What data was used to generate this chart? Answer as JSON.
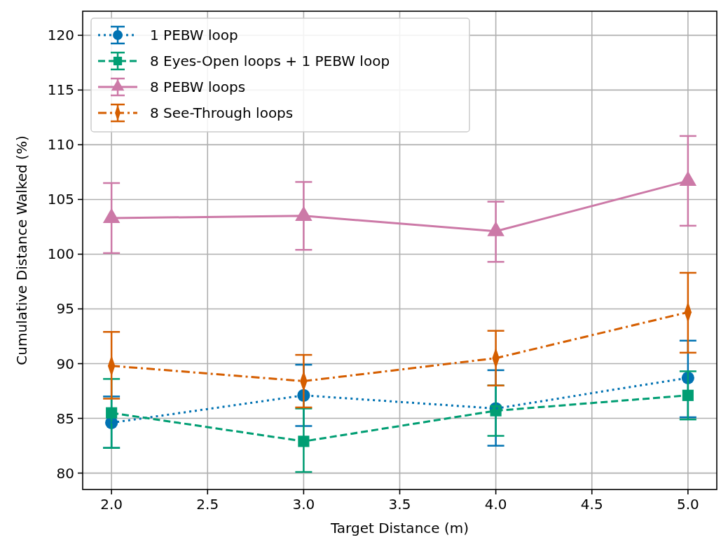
{
  "chart_data": {
    "type": "line",
    "xlabel": "Target Distance (m)",
    "ylabel": "Cumulative Distance Walked (%)",
    "x": [
      2.0,
      3.0,
      4.0,
      5.0
    ],
    "xlim": [
      1.85,
      5.15
    ],
    "xticks": [
      {
        "value": 2,
        "label": "2.0"
      },
      {
        "value": 2.5,
        "label": "2.5"
      },
      {
        "value": 3,
        "label": "3.0"
      },
      {
        "value": 3.5,
        "label": "3.5"
      },
      {
        "value": 4,
        "label": "4.0"
      },
      {
        "value": 4.5,
        "label": "4.5"
      },
      {
        "value": 5,
        "label": "5.0"
      }
    ],
    "ylim": [
      78.5,
      122.2
    ],
    "yticks": [
      80,
      85,
      90,
      95,
      100,
      105,
      110,
      115,
      120
    ],
    "grid": true,
    "legend": "top left",
    "series": [
      {
        "name": "1 PEBW loop",
        "color": "#0072b2",
        "marker": "circle",
        "line_style": "dotted",
        "values": [
          84.6,
          87.1,
          85.9,
          88.7
        ],
        "errors": [
          [
            82.3,
            87.0
          ],
          [
            84.3,
            89.9
          ],
          [
            82.5,
            89.4
          ],
          [
            85.1,
            92.1
          ]
        ]
      },
      {
        "name": "8 Eyes-Open loops + 1 PEBW loop",
        "color": "#009e73",
        "marker": "square",
        "line_style": "dashed",
        "values": [
          85.5,
          82.9,
          85.7,
          87.1
        ],
        "errors": [
          [
            82.3,
            88.6
          ],
          [
            80.1,
            85.9
          ],
          [
            83.4,
            88.0
          ],
          [
            84.9,
            89.3
          ]
        ]
      },
      {
        "name": "8 PEBW loops",
        "color": "#cc79a7",
        "marker": "triangle",
        "line_style": "solid",
        "values": [
          103.3,
          103.5,
          102.1,
          106.7
        ],
        "errors": [
          [
            100.1,
            106.5
          ],
          [
            100.4,
            106.6
          ],
          [
            99.3,
            104.8
          ],
          [
            102.6,
            110.8
          ]
        ]
      },
      {
        "name": "8 See-Through loops",
        "color": "#d55e00",
        "marker": "diamond",
        "line_style": "dashdot",
        "values": [
          89.8,
          88.4,
          90.5,
          94.7
        ],
        "errors": [
          [
            86.8,
            92.9
          ],
          [
            86.0,
            90.8
          ],
          [
            88.0,
            93.0
          ],
          [
            91.0,
            98.3
          ]
        ]
      }
    ]
  }
}
